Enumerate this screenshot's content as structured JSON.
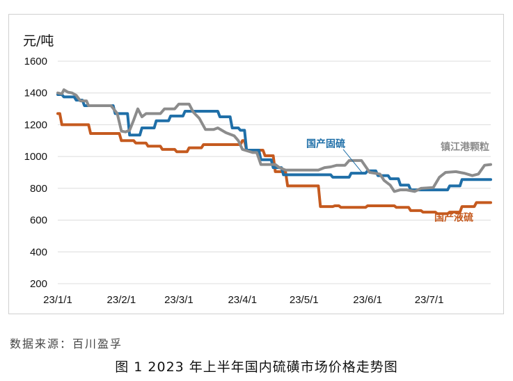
{
  "chart_data": {
    "type": "line",
    "y_unit": "元/吨",
    "ylim": [
      200,
      1600
    ],
    "y_ticks": [
      200,
      400,
      600,
      800,
      1000,
      1200,
      1400,
      1600
    ],
    "x_ticks": [
      "23/1/1",
      "23/2/1",
      "23/3/1",
      "23/4/1",
      "23/5/1",
      "23/6/1",
      "23/7/1"
    ],
    "x_range": [
      "2023-01-01",
      "2023-07-31"
    ],
    "grid": "horizontal",
    "series": [
      {
        "name": "国产固硫",
        "color": "#1f6fa8",
        "points": [
          [
            "2023-01-01",
            1390
          ],
          [
            "2023-01-03",
            1390
          ],
          [
            "2023-01-04",
            1375
          ],
          [
            "2023-01-09",
            1375
          ],
          [
            "2023-01-10",
            1355
          ],
          [
            "2023-01-13",
            1355
          ],
          [
            "2023-01-14",
            1320
          ],
          [
            "2023-01-28",
            1320
          ],
          [
            "2023-01-29",
            1270
          ],
          [
            "2023-02-04",
            1270
          ],
          [
            "2023-02-05",
            1135
          ],
          [
            "2023-02-10",
            1135
          ],
          [
            "2023-02-11",
            1180
          ],
          [
            "2023-02-17",
            1180
          ],
          [
            "2023-02-18",
            1225
          ],
          [
            "2023-02-24",
            1225
          ],
          [
            "2023-02-25",
            1255
          ],
          [
            "2023-03-03",
            1255
          ],
          [
            "2023-03-04",
            1285
          ],
          [
            "2023-03-20",
            1285
          ],
          [
            "2023-03-21",
            1250
          ],
          [
            "2023-03-26",
            1250
          ],
          [
            "2023-03-27",
            1180
          ],
          [
            "2023-03-30",
            1180
          ],
          [
            "2023-03-31",
            1165
          ],
          [
            "2023-04-02",
            1165
          ],
          [
            "2023-04-03",
            1040
          ],
          [
            "2023-04-09",
            1040
          ],
          [
            "2023-04-10",
            980
          ],
          [
            "2023-04-15",
            980
          ],
          [
            "2023-04-16",
            930
          ],
          [
            "2023-04-20",
            930
          ],
          [
            "2023-04-21",
            885
          ],
          [
            "2023-05-14",
            885
          ],
          [
            "2023-05-15",
            870
          ],
          [
            "2023-05-23",
            870
          ],
          [
            "2023-05-24",
            895
          ],
          [
            "2023-05-31",
            895
          ],
          [
            "2023-06-01",
            910
          ],
          [
            "2023-06-05",
            910
          ],
          [
            "2023-06-06",
            880
          ],
          [
            "2023-06-11",
            880
          ],
          [
            "2023-06-12",
            860
          ],
          [
            "2023-06-16",
            860
          ],
          [
            "2023-06-17",
            820
          ],
          [
            "2023-06-21",
            820
          ],
          [
            "2023-06-22",
            790
          ],
          [
            "2023-07-10",
            790
          ],
          [
            "2023-07-11",
            815
          ],
          [
            "2023-07-16",
            815
          ],
          [
            "2023-07-17",
            855
          ],
          [
            "2023-07-31",
            855
          ]
        ]
      },
      {
        "name": "国产液硫",
        "color": "#c55a1f",
        "points": [
          [
            "2023-01-01",
            1270
          ],
          [
            "2023-01-02",
            1270
          ],
          [
            "2023-01-03",
            1200
          ],
          [
            "2023-01-16",
            1200
          ],
          [
            "2023-01-17",
            1145
          ],
          [
            "2023-01-31",
            1145
          ],
          [
            "2023-02-01",
            1100
          ],
          [
            "2023-02-07",
            1100
          ],
          [
            "2023-02-08",
            1085
          ],
          [
            "2023-02-13",
            1085
          ],
          [
            "2023-02-14",
            1065
          ],
          [
            "2023-02-20",
            1065
          ],
          [
            "2023-02-21",
            1045
          ],
          [
            "2023-02-27",
            1045
          ],
          [
            "2023-02-28",
            1030
          ],
          [
            "2023-03-05",
            1030
          ],
          [
            "2023-03-06",
            1055
          ],
          [
            "2023-03-12",
            1055
          ],
          [
            "2023-03-13",
            1075
          ],
          [
            "2023-03-31",
            1075
          ],
          [
            "2023-04-01",
            1100
          ],
          [
            "2023-04-02",
            1100
          ],
          [
            "2023-04-03",
            1040
          ],
          [
            "2023-04-11",
            1040
          ],
          [
            "2023-04-12",
            1005
          ],
          [
            "2023-04-16",
            1005
          ],
          [
            "2023-04-17",
            905
          ],
          [
            "2023-04-22",
            905
          ],
          [
            "2023-04-23",
            815
          ],
          [
            "2023-05-08",
            815
          ],
          [
            "2023-05-09",
            685
          ],
          [
            "2023-05-15",
            685
          ],
          [
            "2023-05-16",
            690
          ],
          [
            "2023-05-18",
            690
          ],
          [
            "2023-05-19",
            680
          ],
          [
            "2023-05-31",
            680
          ],
          [
            "2023-06-01",
            690
          ],
          [
            "2023-06-14",
            690
          ],
          [
            "2023-06-15",
            680
          ],
          [
            "2023-06-21",
            680
          ],
          [
            "2023-06-22",
            660
          ],
          [
            "2023-06-27",
            660
          ],
          [
            "2023-06-28",
            650
          ],
          [
            "2023-07-04",
            650
          ],
          [
            "2023-07-05",
            640
          ],
          [
            "2023-07-10",
            640
          ],
          [
            "2023-07-11",
            650
          ],
          [
            "2023-07-16",
            650
          ],
          [
            "2023-07-17",
            685
          ],
          [
            "2023-07-23",
            685
          ],
          [
            "2023-07-24",
            710
          ],
          [
            "2023-07-31",
            710
          ]
        ]
      },
      {
        "name": "镇江港颗粒",
        "color": "#8c8c8c",
        "points": [
          [
            "2023-01-01",
            1400
          ],
          [
            "2023-01-03",
            1395
          ],
          [
            "2023-01-04",
            1420
          ],
          [
            "2023-01-06",
            1405
          ],
          [
            "2023-01-08",
            1400
          ],
          [
            "2023-01-10",
            1385
          ],
          [
            "2023-01-12",
            1350
          ],
          [
            "2023-01-15",
            1350
          ],
          [
            "2023-01-16",
            1320
          ],
          [
            "2023-01-27",
            1320
          ],
          [
            "2023-01-30",
            1270
          ],
          [
            "2023-02-01",
            1160
          ],
          [
            "2023-02-03",
            1155
          ],
          [
            "2023-02-05",
            1165
          ],
          [
            "2023-02-07",
            1230
          ],
          [
            "2023-02-09",
            1300
          ],
          [
            "2023-02-11",
            1250
          ],
          [
            "2023-02-13",
            1270
          ],
          [
            "2023-02-20",
            1270
          ],
          [
            "2023-02-22",
            1300
          ],
          [
            "2023-02-27",
            1300
          ],
          [
            "2023-03-01",
            1330
          ],
          [
            "2023-03-06",
            1330
          ],
          [
            "2023-03-08",
            1280
          ],
          [
            "2023-03-11",
            1240
          ],
          [
            "2023-03-14",
            1170
          ],
          [
            "2023-03-18",
            1170
          ],
          [
            "2023-03-20",
            1180
          ],
          [
            "2023-03-24",
            1150
          ],
          [
            "2023-03-26",
            1140
          ],
          [
            "2023-03-28",
            1130
          ],
          [
            "2023-03-30",
            1100
          ],
          [
            "2023-04-01",
            1045
          ],
          [
            "2023-04-06",
            1025
          ],
          [
            "2023-04-08",
            1025
          ],
          [
            "2023-04-10",
            950
          ],
          [
            "2023-04-17",
            950
          ],
          [
            "2023-04-19",
            930
          ],
          [
            "2023-04-22",
            915
          ],
          [
            "2023-05-08",
            915
          ],
          [
            "2023-05-11",
            930
          ],
          [
            "2023-05-14",
            935
          ],
          [
            "2023-05-17",
            945
          ],
          [
            "2023-05-21",
            945
          ],
          [
            "2023-05-23",
            975
          ],
          [
            "2023-05-29",
            975
          ],
          [
            "2023-06-02",
            900
          ],
          [
            "2023-06-07",
            890
          ],
          [
            "2023-06-09",
            850
          ],
          [
            "2023-06-12",
            820
          ],
          [
            "2023-06-14",
            780
          ],
          [
            "2023-06-17",
            790
          ],
          [
            "2023-06-20",
            790
          ],
          [
            "2023-06-24",
            780
          ],
          [
            "2023-06-27",
            800
          ],
          [
            "2023-07-03",
            805
          ],
          [
            "2023-07-06",
            870
          ],
          [
            "2023-07-09",
            900
          ],
          [
            "2023-07-14",
            905
          ],
          [
            "2023-07-18",
            895
          ],
          [
            "2023-07-22",
            880
          ],
          [
            "2023-07-25",
            890
          ],
          [
            "2023-07-28",
            945
          ],
          [
            "2023-07-31",
            950
          ]
        ]
      }
    ]
  },
  "source_text": "数据来源：百川盈孚",
  "caption": "图 1 2023 年上半年国内硫磺市场价格走势图"
}
